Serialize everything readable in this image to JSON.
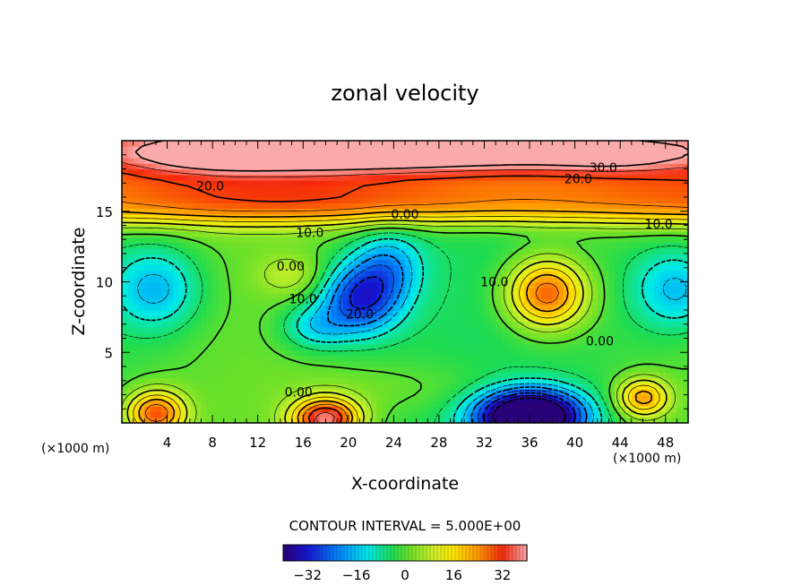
{
  "chart_data": {
    "type": "heatmap",
    "title": "zonal velocity",
    "xlabel": "X-coordinate",
    "ylabel": "Z-coordinate",
    "x_unit": "(×1000 m)",
    "z_unit": "(×1000 m)",
    "xlim": [
      0,
      50
    ],
    "zlim": [
      0,
      20
    ],
    "x_ticks": [
      4,
      8,
      12,
      16,
      20,
      24,
      28,
      32,
      36,
      40,
      44,
      48
    ],
    "z_ticks": [
      5,
      10,
      15
    ],
    "contour_interval_text": "CONTOUR INTERVAL = 5.000E+00",
    "colorbar": {
      "min": -40,
      "max": 40,
      "ticks": [
        -32,
        -16,
        0,
        16,
        32
      ],
      "tick_labels": [
        "−32",
        "−16",
        "0",
        "16",
        "32"
      ]
    },
    "contour_labels": [
      {
        "text": "30.0",
        "x": 42.5,
        "z": 18.1
      },
      {
        "text": "20.0",
        "x": 7.8,
        "z": 16.8
      },
      {
        "text": "20.0",
        "x": 40.3,
        "z": 17.3
      },
      {
        "text": "0.00",
        "x": 25.0,
        "z": 14.8
      },
      {
        "text": "10.0",
        "x": 16.6,
        "z": 13.5
      },
      {
        "text": "10.0",
        "x": 47.4,
        "z": 14.1
      },
      {
        "text": "0.00",
        "x": 14.9,
        "z": 11.1
      },
      {
        "text": "10.0",
        "x": 16.0,
        "z": 8.8
      },
      {
        "text": "20.0",
        "x": 21.0,
        "z": 7.7
      },
      {
        "text": "10.0",
        "x": 32.9,
        "z": 10.0
      },
      {
        "text": "0.00",
        "x": 42.2,
        "z": 5.8
      },
      {
        "text": "0.00",
        "x": 15.6,
        "z": 2.2
      }
    ],
    "features": [
      {
        "x": 25.0,
        "z": 19.3,
        "sx": 25.0,
        "sz": 1.5,
        "u": 30
      },
      {
        "x": 8.0,
        "z": 18.8,
        "sx": 6.0,
        "sz": 1.0,
        "u": 6
      },
      {
        "x": 43.0,
        "z": 18.8,
        "sx": 5.5,
        "sz": 1.0,
        "u": 6
      },
      {
        "x": 25.0,
        "z": 15.8,
        "sx": 20.0,
        "sz": 1.3,
        "u": 4
      },
      {
        "x": 37.5,
        "z": 9.2,
        "sx": 3.5,
        "sz": 2.5,
        "u": 32
      },
      {
        "x": 21.0,
        "z": 8.8,
        "sx": 3.5,
        "sz": 2.5,
        "u": -28
      },
      {
        "x": 23.5,
        "z": 11.2,
        "sx": 3.0,
        "sz": 2.5,
        "u": -15
      },
      {
        "x": 17.0,
        "z": 6.8,
        "sx": 3.0,
        "sz": 1.6,
        "u": -12
      },
      {
        "x": 3.0,
        "z": 9.5,
        "sx": 4.0,
        "sz": 3.0,
        "u": -16
      },
      {
        "x": 49.0,
        "z": 9.5,
        "sx": 4.0,
        "sz": 3.0,
        "u": -16
      },
      {
        "x": 15.0,
        "z": 10.5,
        "sx": 3.0,
        "sz": 1.5,
        "u": 8
      },
      {
        "x": 36.0,
        "z": 0.5,
        "sx": 4.5,
        "sz": 1.8,
        "u": -60
      },
      {
        "x": 18.0,
        "z": 0.3,
        "sx": 3.0,
        "sz": 1.5,
        "u": 38
      },
      {
        "x": 3.0,
        "z": 0.7,
        "sx": 2.6,
        "sz": 1.6,
        "u": 30
      },
      {
        "x": 46.0,
        "z": 1.8,
        "sx": 2.3,
        "sz": 1.4,
        "u": 24
      },
      {
        "x": 26.0,
        "z": 2.5,
        "sx": 10.0,
        "sz": 2.0,
        "u": 4
      }
    ]
  }
}
